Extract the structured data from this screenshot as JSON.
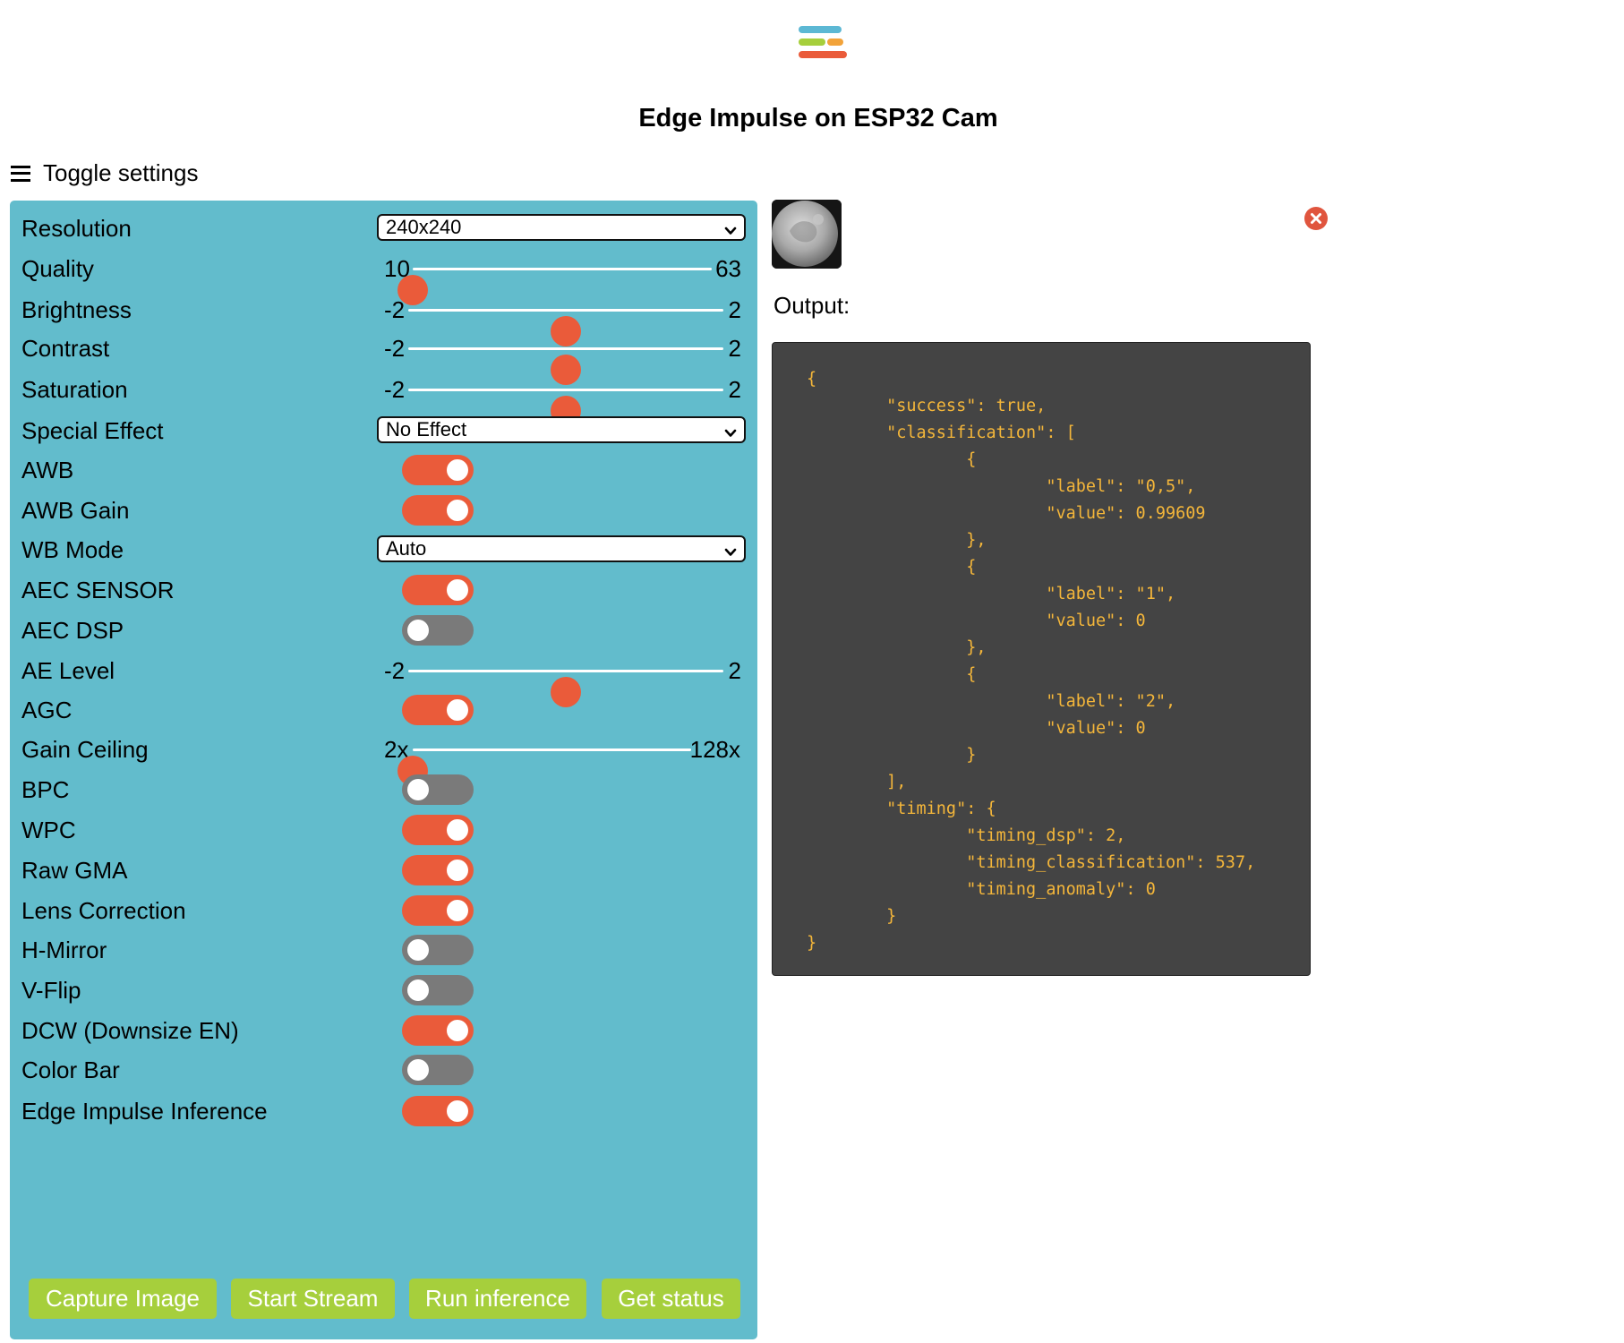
{
  "header": {
    "title": "Edge Impulse on ESP32 Cam"
  },
  "toggle_settings": {
    "label": "Toggle settings"
  },
  "colors": {
    "panel": "#62bccc",
    "accent": "#ea5b3a",
    "button": "#a6cf3c",
    "switch_off": "#7a7a7a",
    "code_text": "#f4b63a",
    "code_bg": "#444444"
  },
  "settings": [
    {
      "label": "Resolution",
      "type": "select",
      "value": "240x240"
    },
    {
      "label": "Quality",
      "type": "range",
      "min": "10",
      "max": "63",
      "value": 10
    },
    {
      "label": "Brightness",
      "type": "range",
      "min": "-2",
      "max": "2",
      "value": 0
    },
    {
      "label": "Contrast",
      "type": "range",
      "min": "-2",
      "max": "2",
      "value": 0
    },
    {
      "label": "Saturation",
      "type": "range",
      "min": "-2",
      "max": "2",
      "value": 0
    },
    {
      "label": "Special Effect",
      "type": "select",
      "value": "No Effect"
    },
    {
      "label": "AWB",
      "type": "switch",
      "on": true
    },
    {
      "label": "AWB Gain",
      "type": "switch",
      "on": true
    },
    {
      "label": "WB Mode",
      "type": "select",
      "value": "Auto"
    },
    {
      "label": "AEC SENSOR",
      "type": "switch",
      "on": true
    },
    {
      "label": "AEC DSP",
      "type": "switch",
      "on": false
    },
    {
      "label": "AE Level",
      "type": "range",
      "min": "-2",
      "max": "2",
      "value": 0
    },
    {
      "label": "AGC",
      "type": "switch",
      "on": true
    },
    {
      "label": "Gain Ceiling",
      "type": "range",
      "min": "2x",
      "max": "128x",
      "value": 0
    },
    {
      "label": "BPC",
      "type": "switch",
      "on": false
    },
    {
      "label": "WPC",
      "type": "switch",
      "on": true
    },
    {
      "label": "Raw GMA",
      "type": "switch",
      "on": true
    },
    {
      "label": "Lens Correction",
      "type": "switch",
      "on": true
    },
    {
      "label": "H-Mirror",
      "type": "switch",
      "on": false
    },
    {
      "label": "V-Flip",
      "type": "switch",
      "on": false
    },
    {
      "label": "DCW (Downsize EN)",
      "type": "switch",
      "on": true
    },
    {
      "label": "Color Bar",
      "type": "switch",
      "on": false
    },
    {
      "label": "Edge Impulse Inference",
      "type": "switch",
      "on": true
    }
  ],
  "buttons": {
    "capture": "Capture Image",
    "stream": "Start Stream",
    "inference": "Run inference",
    "status": "Get status"
  },
  "output": {
    "label": "Output:",
    "text": "{\n\t\"success\": true,\n\t\"classification\": [\n\t\t{\n\t\t\t\"label\": \"0,5\",\n\t\t\t\"value\": 0.99609\n\t\t},\n\t\t{\n\t\t\t\"label\": \"1\",\n\t\t\t\"value\": 0\n\t\t},\n\t\t{\n\t\t\t\"label\": \"2\",\n\t\t\t\"value\": 0\n\t\t}\n\t],\n\t\"timing\": {\n\t\t\"timing_dsp\": 2,\n\t\t\"timing_classification\": 537,\n\t\t\"timing_anomaly\": 0\n\t}\n}"
  },
  "icons": {
    "logo": "edge-impulse-logo",
    "menu": "hamburger-icon",
    "close": "close-icon",
    "thumbnail": "captured-image"
  }
}
